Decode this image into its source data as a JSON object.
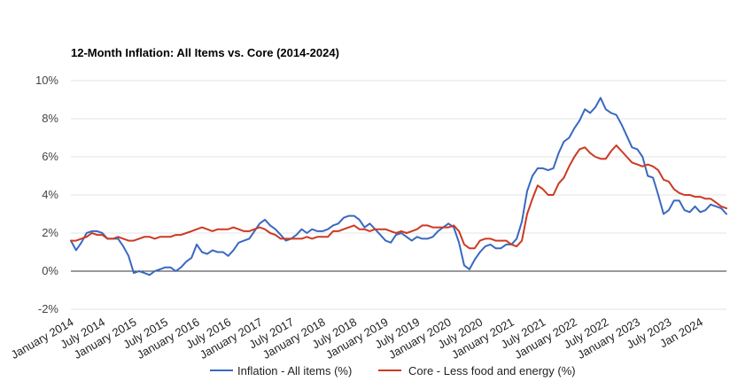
{
  "chart_data": {
    "type": "line",
    "title": "12-Month Inflation: All Items vs. Core (2014-2024)",
    "xlabel": "",
    "ylabel": "",
    "ylim": [
      -2,
      10
    ],
    "xlim": [
      "2014-01",
      "2024-06"
    ],
    "y_ticks": [
      "-2%",
      "0%",
      "2%",
      "4%",
      "6%",
      "8%",
      "10%"
    ],
    "x_ticks": [
      {
        "label": "January 2014",
        "date": "2014-01"
      },
      {
        "label": "July 2014",
        "date": "2014-07"
      },
      {
        "label": "January 2015",
        "date": "2015-01"
      },
      {
        "label": "July 2015",
        "date": "2015-07"
      },
      {
        "label": "January 2016",
        "date": "2016-01"
      },
      {
        "label": "July 2016",
        "date": "2016-07"
      },
      {
        "label": "January 2017",
        "date": "2017-01"
      },
      {
        "label": "July 2017",
        "date": "2017-07"
      },
      {
        "label": "January 2018",
        "date": "2018-01"
      },
      {
        "label": "July 2018",
        "date": "2018-07"
      },
      {
        "label": "January 2019",
        "date": "2019-01"
      },
      {
        "label": "July 2019",
        "date": "2019-07"
      },
      {
        "label": "January 2020",
        "date": "2020-01"
      },
      {
        "label": "July 2020",
        "date": "2020-07"
      },
      {
        "label": "January 2021",
        "date": "2021-01"
      },
      {
        "label": "July 2021",
        "date": "2021-07"
      },
      {
        "label": "January 2022",
        "date": "2022-01"
      },
      {
        "label": "July 2022",
        "date": "2022-07"
      },
      {
        "label": "January 2023",
        "date": "2023-01"
      },
      {
        "label": "July 2023",
        "date": "2023-07"
      },
      {
        "label": "Jan 2024",
        "date": "2024-01"
      }
    ],
    "grid": true,
    "legend_position": "bottom",
    "series": [
      {
        "name": "Inflation - All items (%)",
        "color": "#3a68c1",
        "points": [
          [
            "2014-01",
            1.6
          ],
          [
            "2014-02",
            1.1
          ],
          [
            "2014-03",
            1.5
          ],
          [
            "2014-04",
            2.0
          ],
          [
            "2014-05",
            2.1
          ],
          [
            "2014-06",
            2.1
          ],
          [
            "2014-07",
            2.0
          ],
          [
            "2014-08",
            1.7
          ],
          [
            "2014-09",
            1.7
          ],
          [
            "2014-10",
            1.7
          ],
          [
            "2014-11",
            1.3
          ],
          [
            "2014-12",
            0.8
          ],
          [
            "2015-01",
            -0.1
          ],
          [
            "2015-02",
            0.0
          ],
          [
            "2015-03",
            -0.1
          ],
          [
            "2015-04",
            -0.2
          ],
          [
            "2015-05",
            0.0
          ],
          [
            "2015-06",
            0.1
          ],
          [
            "2015-07",
            0.2
          ],
          [
            "2015-08",
            0.2
          ],
          [
            "2015-09",
            0.0
          ],
          [
            "2015-10",
            0.2
          ],
          [
            "2015-11",
            0.5
          ],
          [
            "2015-12",
            0.7
          ],
          [
            "2016-01",
            1.4
          ],
          [
            "2016-02",
            1.0
          ],
          [
            "2016-03",
            0.9
          ],
          [
            "2016-04",
            1.1
          ],
          [
            "2016-05",
            1.0
          ],
          [
            "2016-06",
            1.0
          ],
          [
            "2016-07",
            0.8
          ],
          [
            "2016-08",
            1.1
          ],
          [
            "2016-09",
            1.5
          ],
          [
            "2016-10",
            1.6
          ],
          [
            "2016-11",
            1.7
          ],
          [
            "2016-12",
            2.1
          ],
          [
            "2017-01",
            2.5
          ],
          [
            "2017-02",
            2.7
          ],
          [
            "2017-03",
            2.4
          ],
          [
            "2017-04",
            2.2
          ],
          [
            "2017-05",
            1.9
          ],
          [
            "2017-06",
            1.6
          ],
          [
            "2017-07",
            1.7
          ],
          [
            "2017-08",
            1.9
          ],
          [
            "2017-09",
            2.2
          ],
          [
            "2017-10",
            2.0
          ],
          [
            "2017-11",
            2.2
          ],
          [
            "2017-12",
            2.1
          ],
          [
            "2018-01",
            2.1
          ],
          [
            "2018-02",
            2.2
          ],
          [
            "2018-03",
            2.4
          ],
          [
            "2018-04",
            2.5
          ],
          [
            "2018-05",
            2.8
          ],
          [
            "2018-06",
            2.9
          ],
          [
            "2018-07",
            2.9
          ],
          [
            "2018-08",
            2.7
          ],
          [
            "2018-09",
            2.3
          ],
          [
            "2018-10",
            2.5
          ],
          [
            "2018-11",
            2.2
          ],
          [
            "2018-12",
            1.9
          ],
          [
            "2019-01",
            1.6
          ],
          [
            "2019-02",
            1.5
          ],
          [
            "2019-03",
            1.9
          ],
          [
            "2019-04",
            2.0
          ],
          [
            "2019-05",
            1.8
          ],
          [
            "2019-06",
            1.6
          ],
          [
            "2019-07",
            1.8
          ],
          [
            "2019-08",
            1.7
          ],
          [
            "2019-09",
            1.7
          ],
          [
            "2019-10",
            1.8
          ],
          [
            "2019-11",
            2.1
          ],
          [
            "2019-12",
            2.3
          ],
          [
            "2020-01",
            2.5
          ],
          [
            "2020-02",
            2.3
          ],
          [
            "2020-03",
            1.5
          ],
          [
            "2020-04",
            0.3
          ],
          [
            "2020-05",
            0.1
          ],
          [
            "2020-06",
            0.6
          ],
          [
            "2020-07",
            1.0
          ],
          [
            "2020-08",
            1.3
          ],
          [
            "2020-09",
            1.4
          ],
          [
            "2020-10",
            1.2
          ],
          [
            "2020-11",
            1.2
          ],
          [
            "2020-12",
            1.4
          ],
          [
            "2021-01",
            1.4
          ],
          [
            "2021-02",
            1.7
          ],
          [
            "2021-03",
            2.6
          ],
          [
            "2021-04",
            4.2
          ],
          [
            "2021-05",
            5.0
          ],
          [
            "2021-06",
            5.4
          ],
          [
            "2021-07",
            5.4
          ],
          [
            "2021-08",
            5.3
          ],
          [
            "2021-09",
            5.4
          ],
          [
            "2021-10",
            6.2
          ],
          [
            "2021-11",
            6.8
          ],
          [
            "2021-12",
            7.0
          ],
          [
            "2022-01",
            7.5
          ],
          [
            "2022-02",
            7.9
          ],
          [
            "2022-03",
            8.5
          ],
          [
            "2022-04",
            8.3
          ],
          [
            "2022-05",
            8.6
          ],
          [
            "2022-06",
            9.1
          ],
          [
            "2022-07",
            8.5
          ],
          [
            "2022-08",
            8.3
          ],
          [
            "2022-09",
            8.2
          ],
          [
            "2022-10",
            7.7
          ],
          [
            "2022-11",
            7.1
          ],
          [
            "2022-12",
            6.5
          ],
          [
            "2023-01",
            6.4
          ],
          [
            "2023-02",
            6.0
          ],
          [
            "2023-03",
            5.0
          ],
          [
            "2023-04",
            4.9
          ],
          [
            "2023-05",
            4.0
          ],
          [
            "2023-06",
            3.0
          ],
          [
            "2023-07",
            3.2
          ],
          [
            "2023-08",
            3.7
          ],
          [
            "2023-09",
            3.7
          ],
          [
            "2023-10",
            3.2
          ],
          [
            "2023-11",
            3.1
          ],
          [
            "2023-12",
            3.4
          ],
          [
            "2024-01",
            3.1
          ],
          [
            "2024-02",
            3.2
          ],
          [
            "2024-03",
            3.5
          ],
          [
            "2024-04",
            3.4
          ],
          [
            "2024-05",
            3.3
          ],
          [
            "2024-06",
            3.0
          ]
        ]
      },
      {
        "name": "Core - Less food and energy (%)",
        "color": "#cc3a22",
        "points": [
          [
            "2014-01",
            1.6
          ],
          [
            "2014-02",
            1.6
          ],
          [
            "2014-03",
            1.7
          ],
          [
            "2014-04",
            1.8
          ],
          [
            "2014-05",
            2.0
          ],
          [
            "2014-06",
            1.9
          ],
          [
            "2014-07",
            1.9
          ],
          [
            "2014-08",
            1.7
          ],
          [
            "2014-09",
            1.7
          ],
          [
            "2014-10",
            1.8
          ],
          [
            "2014-11",
            1.7
          ],
          [
            "2014-12",
            1.6
          ],
          [
            "2015-01",
            1.6
          ],
          [
            "2015-02",
            1.7
          ],
          [
            "2015-03",
            1.8
          ],
          [
            "2015-04",
            1.8
          ],
          [
            "2015-05",
            1.7
          ],
          [
            "2015-06",
            1.8
          ],
          [
            "2015-07",
            1.8
          ],
          [
            "2015-08",
            1.8
          ],
          [
            "2015-09",
            1.9
          ],
          [
            "2015-10",
            1.9
          ],
          [
            "2015-11",
            2.0
          ],
          [
            "2015-12",
            2.1
          ],
          [
            "2016-01",
            2.2
          ],
          [
            "2016-02",
            2.3
          ],
          [
            "2016-03",
            2.2
          ],
          [
            "2016-04",
            2.1
          ],
          [
            "2016-05",
            2.2
          ],
          [
            "2016-06",
            2.2
          ],
          [
            "2016-07",
            2.2
          ],
          [
            "2016-08",
            2.3
          ],
          [
            "2016-09",
            2.2
          ],
          [
            "2016-10",
            2.1
          ],
          [
            "2016-11",
            2.1
          ],
          [
            "2016-12",
            2.2
          ],
          [
            "2017-01",
            2.3
          ],
          [
            "2017-02",
            2.2
          ],
          [
            "2017-03",
            2.0
          ],
          [
            "2017-04",
            1.9
          ],
          [
            "2017-05",
            1.7
          ],
          [
            "2017-06",
            1.7
          ],
          [
            "2017-07",
            1.7
          ],
          [
            "2017-08",
            1.7
          ],
          [
            "2017-09",
            1.7
          ],
          [
            "2017-10",
            1.8
          ],
          [
            "2017-11",
            1.7
          ],
          [
            "2017-12",
            1.8
          ],
          [
            "2018-01",
            1.8
          ],
          [
            "2018-02",
            1.8
          ],
          [
            "2018-03",
            2.1
          ],
          [
            "2018-04",
            2.1
          ],
          [
            "2018-05",
            2.2
          ],
          [
            "2018-06",
            2.3
          ],
          [
            "2018-07",
            2.4
          ],
          [
            "2018-08",
            2.2
          ],
          [
            "2018-09",
            2.2
          ],
          [
            "2018-10",
            2.1
          ],
          [
            "2018-11",
            2.2
          ],
          [
            "2018-12",
            2.2
          ],
          [
            "2019-01",
            2.2
          ],
          [
            "2019-02",
            2.1
          ],
          [
            "2019-03",
            2.0
          ],
          [
            "2019-04",
            2.1
          ],
          [
            "2019-05",
            2.0
          ],
          [
            "2019-06",
            2.1
          ],
          [
            "2019-07",
            2.2
          ],
          [
            "2019-08",
            2.4
          ],
          [
            "2019-09",
            2.4
          ],
          [
            "2019-10",
            2.3
          ],
          [
            "2019-11",
            2.3
          ],
          [
            "2019-12",
            2.3
          ],
          [
            "2020-01",
            2.3
          ],
          [
            "2020-02",
            2.4
          ],
          [
            "2020-03",
            2.1
          ],
          [
            "2020-04",
            1.4
          ],
          [
            "2020-05",
            1.2
          ],
          [
            "2020-06",
            1.2
          ],
          [
            "2020-07",
            1.6
          ],
          [
            "2020-08",
            1.7
          ],
          [
            "2020-09",
            1.7
          ],
          [
            "2020-10",
            1.6
          ],
          [
            "2020-11",
            1.6
          ],
          [
            "2020-12",
            1.6
          ],
          [
            "2021-01",
            1.4
          ],
          [
            "2021-02",
            1.3
          ],
          [
            "2021-03",
            1.6
          ],
          [
            "2021-04",
            3.0
          ],
          [
            "2021-05",
            3.8
          ],
          [
            "2021-06",
            4.5
          ],
          [
            "2021-07",
            4.3
          ],
          [
            "2021-08",
            4.0
          ],
          [
            "2021-09",
            4.0
          ],
          [
            "2021-10",
            4.6
          ],
          [
            "2021-11",
            4.9
          ],
          [
            "2021-12",
            5.5
          ],
          [
            "2022-01",
            6.0
          ],
          [
            "2022-02",
            6.4
          ],
          [
            "2022-03",
            6.5
          ],
          [
            "2022-04",
            6.2
          ],
          [
            "2022-05",
            6.0
          ],
          [
            "2022-06",
            5.9
          ],
          [
            "2022-07",
            5.9
          ],
          [
            "2022-08",
            6.3
          ],
          [
            "2022-09",
            6.6
          ],
          [
            "2022-10",
            6.3
          ],
          [
            "2022-11",
            6.0
          ],
          [
            "2022-12",
            5.7
          ],
          [
            "2023-01",
            5.6
          ],
          [
            "2023-02",
            5.5
          ],
          [
            "2023-03",
            5.6
          ],
          [
            "2023-04",
            5.5
          ],
          [
            "2023-05",
            5.3
          ],
          [
            "2023-06",
            4.8
          ],
          [
            "2023-07",
            4.7
          ],
          [
            "2023-08",
            4.3
          ],
          [
            "2023-09",
            4.1
          ],
          [
            "2023-10",
            4.0
          ],
          [
            "2023-11",
            4.0
          ],
          [
            "2023-12",
            3.9
          ],
          [
            "2024-01",
            3.9
          ],
          [
            "2024-02",
            3.8
          ],
          [
            "2024-03",
            3.8
          ],
          [
            "2024-04",
            3.6
          ],
          [
            "2024-05",
            3.4
          ],
          [
            "2024-06",
            3.3
          ]
        ]
      }
    ]
  }
}
